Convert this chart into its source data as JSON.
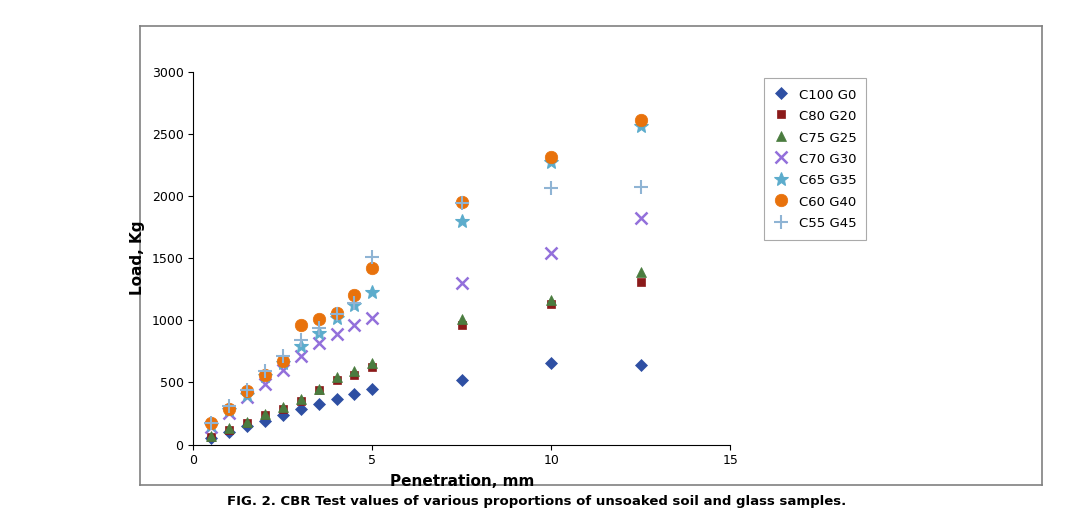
{
  "series": [
    {
      "label": "C100 G0",
      "color": "#2e4fa3",
      "marker": "D",
      "markersize": 6,
      "markeredgewidth": 0.5,
      "x": [
        0.5,
        1,
        1.5,
        2,
        2.5,
        3,
        3.5,
        4,
        4.5,
        5,
        7.5,
        10,
        12.5
      ],
      "y": [
        50,
        100,
        150,
        190,
        240,
        290,
        330,
        370,
        410,
        450,
        520,
        660,
        640
      ]
    },
    {
      "label": "C80 G20",
      "color": "#8b1a1a",
      "marker": "s",
      "markersize": 6,
      "markeredgewidth": 0.5,
      "x": [
        0.5,
        1,
        1.5,
        2,
        2.5,
        3,
        3.5,
        4,
        4.5,
        5,
        7.5,
        10,
        12.5
      ],
      "y": [
        60,
        120,
        175,
        235,
        290,
        350,
        440,
        520,
        560,
        620,
        960,
        1130,
        1310
      ]
    },
    {
      "label": "C75 G25",
      "color": "#4a7c3f",
      "marker": "^",
      "markersize": 7,
      "markeredgewidth": 0.5,
      "x": [
        0.5,
        1,
        1.5,
        2,
        2.5,
        3,
        3.5,
        4,
        4.5,
        5,
        7.5,
        10,
        12.5
      ],
      "y": [
        65,
        130,
        185,
        245,
        305,
        365,
        450,
        540,
        590,
        660,
        1010,
        1165,
        1385
      ]
    },
    {
      "label": "C70 G30",
      "color": "#9370db",
      "marker": "x",
      "markersize": 9,
      "markeredgewidth": 1.8,
      "x": [
        0.5,
        1,
        1.5,
        2,
        2.5,
        3,
        3.5,
        4,
        4.5,
        5,
        7.5,
        10,
        12.5
      ],
      "y": [
        140,
        250,
        380,
        490,
        600,
        710,
        820,
        890,
        960,
        1020,
        1300,
        1540,
        1820
      ]
    },
    {
      "label": "C65 G35",
      "color": "#5caccc",
      "marker": "*",
      "markersize": 10,
      "markeredgewidth": 0.8,
      "x": [
        0.5,
        1,
        1.5,
        2,
        2.5,
        3,
        3.5,
        4,
        4.5,
        5,
        7.5,
        10,
        12.5
      ],
      "y": [
        160,
        280,
        400,
        550,
        660,
        790,
        900,
        1020,
        1120,
        1230,
        1800,
        2270,
        2560
      ]
    },
    {
      "label": "C60 G40",
      "color": "#e8720c",
      "marker": "o",
      "markersize": 9,
      "markeredgewidth": 0.5,
      "x": [
        0.5,
        1,
        1.5,
        2,
        2.5,
        3,
        3.5,
        4,
        4.5,
        5,
        7.5,
        10,
        12.5
      ],
      "y": [
        170,
        290,
        430,
        560,
        670,
        960,
        1010,
        1060,
        1200,
        1420,
        1950,
        2310,
        2610
      ]
    },
    {
      "label": "C55 G45",
      "color": "#8fb4d4",
      "marker": "+",
      "markersize": 10,
      "markeredgewidth": 1.5,
      "x": [
        0.5,
        1,
        1.5,
        2,
        2.5,
        3,
        3.5,
        4,
        4.5,
        5,
        7.5,
        10,
        12.5
      ],
      "y": [
        175,
        310,
        440,
        590,
        710,
        840,
        940,
        1050,
        1140,
        1510,
        1940,
        2060,
        2070
      ]
    }
  ],
  "xlabel": "Penetration, mm",
  "ylabel": "Load, Kg",
  "xlim": [
    0,
    15
  ],
  "ylim": [
    0,
    3000
  ],
  "yticks": [
    0,
    500,
    1000,
    1500,
    2000,
    2500,
    3000
  ],
  "xticks": [
    0,
    5,
    10,
    15
  ],
  "caption": "FIG. 2. CBR Test values of various proportions of unsoaked soil and glass samples.",
  "outer_box_color": "#808080",
  "plot_bg": "#ffffff",
  "fig_bg": "#ffffff"
}
